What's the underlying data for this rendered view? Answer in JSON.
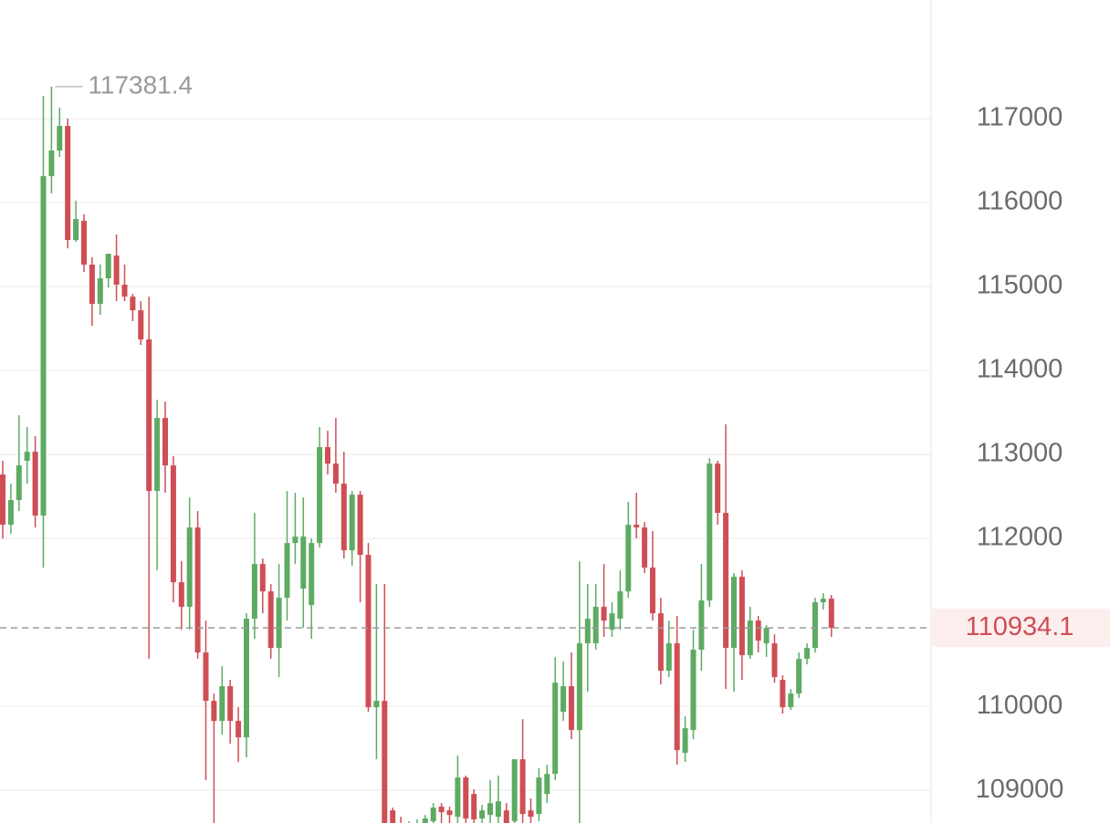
{
  "chart_data": {
    "type": "candlestick",
    "open": [
      112761,
      112163,
      112456,
      112924,
      113032,
      112272,
      116315,
      116620,
      116913,
      115554,
      115782,
      115261,
      114793,
      115098,
      115369,
      115022,
      114880,
      114717,
      114370,
      112565,
      113435,
      112869,
      111478,
      111185,
      112130,
      110641,
      110065,
      109826,
      110239,
      109826,
      109630,
      111043,
      111695,
      111369,
      110695,
      111293,
      111945,
      111402,
      111206,
      111945,
      113087,
      112891,
      112652,
      111858,
      112521,
      111804,
      109989,
      110065,
      108760,
      108576,
      108467,
      108543,
      108597,
      108630,
      108804,
      108760,
      108684,
      109152,
      108956,
      108663,
      108706,
      108684,
      108760,
      108630,
      109369,
      108760,
      108717,
      108956,
      109195,
      109935,
      110239,
      109717,
      110750,
      110750,
      111185,
      110913,
      111043,
      111369,
      112163,
      112130,
      111652,
      111108,
      110424,
      110750,
      109445,
      109717,
      110674,
      111260,
      112891,
      112304,
      110695,
      111543,
      110608,
      111021,
      110750,
      110750,
      110315,
      109989,
      110152,
      110565,
      110695,
      111239,
      111282
    ],
    "high": [
      112924,
      112652,
      113467,
      113326,
      113217,
      117272,
      117381.4,
      117130,
      117000,
      116022,
      115859,
      115348,
      115261,
      115391,
      115620,
      115261,
      114913,
      114826,
      114880,
      113652,
      113630,
      112978,
      111728,
      112489,
      112326,
      111021,
      110152,
      110478,
      110315,
      109989,
      111108,
      112304,
      111760,
      111456,
      111695,
      112565,
      112543,
      112489,
      112000,
      113326,
      113282,
      113435,
      113032,
      112565,
      112565,
      111945,
      111456,
      111456,
      108793,
      108684,
      108630,
      108652,
      108706,
      108847,
      108847,
      108804,
      109413,
      109174,
      109010,
      108826,
      109119,
      109174,
      108847,
      109369,
      109847,
      108902,
      109261,
      109304,
      110587,
      110532,
      110641,
      111728,
      111456,
      111456,
      111695,
      111239,
      111619,
      112435,
      112543,
      112195,
      112087,
      111293,
      111021,
      111076,
      109880,
      110913,
      111695,
      112956,
      112924,
      113358,
      111587,
      111619,
      111185,
      111076,
      110967,
      110858,
      110370,
      110206,
      110641,
      110750,
      111293,
      111347,
      111326
    ],
    "low": [
      112000,
      112054,
      112326,
      112652,
      112130,
      111652,
      116109,
      116543,
      115456,
      115532,
      115174,
      114532,
      114663,
      114989,
      114826,
      114826,
      114587,
      114304,
      110565,
      111619,
      112543,
      111239,
      110913,
      110913,
      110565,
      109119,
      108500,
      109662,
      109554,
      109337,
      109391,
      110804,
      111108,
      110565,
      110348,
      111021,
      111695,
      110934,
      110804,
      111891,
      112761,
      112543,
      111760,
      111674,
      111239,
      109935,
      109369,
      108400,
      108467,
      108358,
      108304,
      108413,
      108500,
      108576,
      108608,
      108576,
      108608,
      108608,
      108576,
      108576,
      108608,
      108576,
      108521,
      108576,
      108608,
      108576,
      108630,
      108847,
      109119,
      109826,
      109608,
      108608,
      110174,
      110674,
      110826,
      110826,
      110913,
      111293,
      112000,
      111587,
      111021,
      110261,
      110348,
      109304,
      109337,
      109608,
      110424,
      111185,
      112163,
      110206,
      110174,
      110315,
      110565,
      110641,
      110587,
      110282,
      109913,
      109956,
      110098,
      110500,
      110641,
      111152,
      110826
    ],
    "close": [
      112163,
      112456,
      112869,
      113032,
      112272,
      116315,
      116620,
      116913,
      115554,
      115804,
      115261,
      114793,
      115098,
      115391,
      115022,
      114880,
      114717,
      114370,
      112565,
      113435,
      112869,
      111478,
      111185,
      112130,
      110641,
      110065,
      109826,
      110239,
      109826,
      109630,
      111043,
      111695,
      111369,
      110695,
      111293,
      111945,
      112021,
      112021,
      111945,
      113087,
      112891,
      112652,
      111858,
      112521,
      111804,
      109989,
      110065,
      108500,
      108576,
      108467,
      108576,
      108608,
      108663,
      108793,
      108739,
      108706,
      109152,
      108663,
      108652,
      108760,
      108847,
      108869,
      108608,
      109369,
      108717,
      108684,
      109152,
      109195,
      110282,
      110239,
      109717,
      110750,
      111043,
      111185,
      111021,
      111108,
      111369,
      112163,
      112130,
      111652,
      111108,
      110424,
      110750,
      109478,
      109739,
      110674,
      111260,
      112891,
      112304,
      110695,
      111543,
      110608,
      111021,
      110782,
      110934,
      110348,
      109989,
      110152,
      110565,
      110695,
      111239,
      111282,
      110934.1
    ],
    "up_color": "#5dab62",
    "down_color": "#cf4e55",
    "ylim": [
      108610,
      118413
    ],
    "yticks": [
      109000,
      110000,
      112000,
      113000,
      114000,
      115000,
      116000,
      117000
    ],
    "grid": true
  }
}
